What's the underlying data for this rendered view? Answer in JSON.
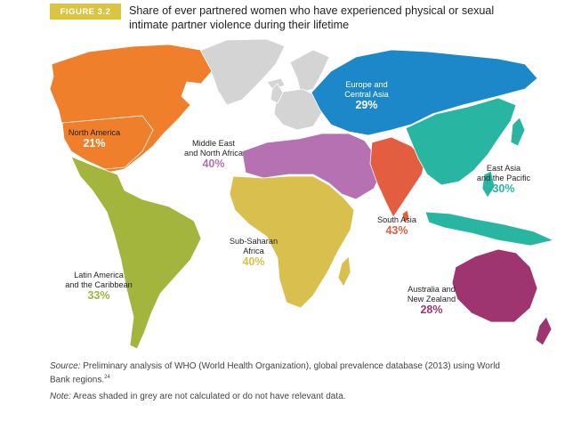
{
  "figure": {
    "badge": "FIGURE 3.2",
    "title": "Share of ever partnered women who have experienced physical or sexual intimate partner violence during their lifetime"
  },
  "regions": [
    {
      "key": "north_america",
      "name": "North America",
      "value": "21%",
      "color": "#f07f2c"
    },
    {
      "key": "latin_america",
      "name": "Latin America and the Caribbean",
      "value": "33%",
      "color": "#a3b53c"
    },
    {
      "key": "mena",
      "name": "Middle East and North Africa",
      "value": "40%",
      "color": "#b571b2"
    },
    {
      "key": "ssa",
      "name": "Sub-Saharan Africa",
      "value": "40%",
      "color": "#d9c04e"
    },
    {
      "key": "europe_ca",
      "name": "Europe and Central Asia",
      "value": "29%",
      "color": "#1c87c9"
    },
    {
      "key": "south_asia",
      "name": "South Asia",
      "value": "43%",
      "color": "#e35d41"
    },
    {
      "key": "east_asia",
      "name": "East Asia and the Pacific",
      "value": "30%",
      "color": "#28b6a2"
    },
    {
      "key": "aus_nz",
      "name": "Australia and New Zealand",
      "value": "28%",
      "color": "#9e3570"
    }
  ],
  "labels": {
    "north_america": {
      "line1": "North America",
      "value": "21%"
    },
    "latin_america": {
      "line1": "Latin America",
      "line2": "and the Caribbean",
      "value": "33%"
    },
    "mena": {
      "line1": "Middle East",
      "line2": "and North Africa",
      "value": "40%"
    },
    "ssa": {
      "line1": "Sub-Saharan",
      "line2": "Africa",
      "value": "40%"
    },
    "europe_ca": {
      "line1": "Europe and",
      "line2": "Central Asia",
      "value": "29%"
    },
    "south_asia": {
      "line1": "South Asia",
      "value": "43%"
    },
    "east_asia": {
      "line1": "East Asia",
      "line2": "and the Pacific",
      "value": "30%"
    },
    "aus_nz": {
      "line1": "Australia and",
      "line2": "New Zealand",
      "value": "28%"
    }
  },
  "no_data_color": "#d4d4d4",
  "notes": {
    "source_label": "Source:",
    "source_text": "Preliminary analysis of WHO (World Health Organization), global prevalence database (2013) using World Bank regions.",
    "source_ref": "24",
    "note_label": "Note:",
    "note_text": "Areas shaded in grey are not calculated or do not have relevant data."
  }
}
